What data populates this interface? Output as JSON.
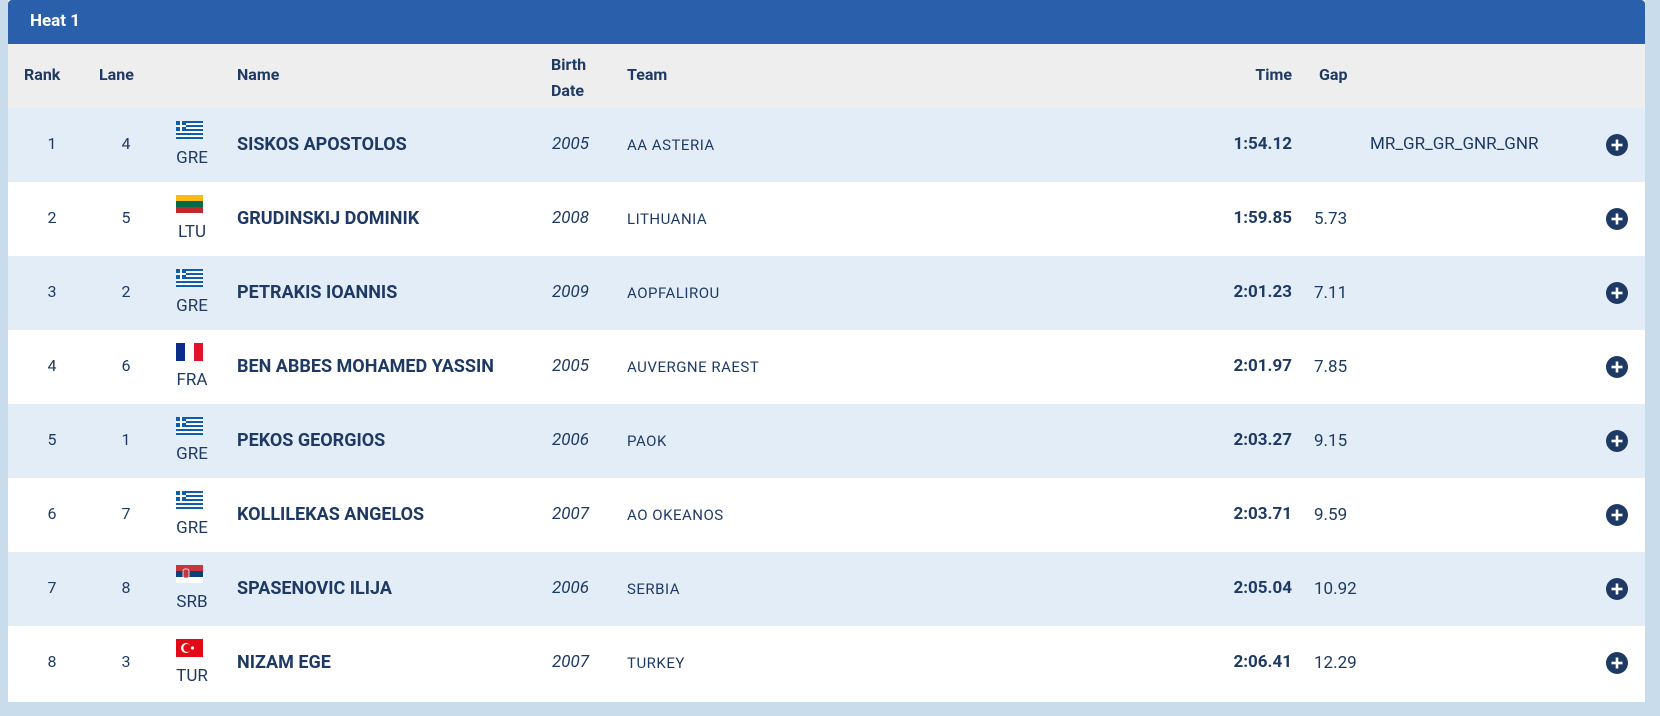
{
  "header": {
    "title": "Heat 1"
  },
  "table": {
    "columns": {
      "rank": "Rank",
      "lane": "Lane",
      "name": "Name",
      "birth": "Birth Date",
      "team": "Team",
      "time": "Time",
      "gap": "Gap"
    },
    "rows": [
      {
        "rank": 1,
        "lane": 4,
        "country": "GRE",
        "name": "SISKOS APOSTOLOS",
        "birth": 2005,
        "team": "AA ASTERIA",
        "time": "1:54.12",
        "gap": null,
        "records": "MR_GR_GR_GNR_GNR"
      },
      {
        "rank": 2,
        "lane": 5,
        "country": "LTU",
        "name": "GRUDINSKIJ DOMINIK",
        "birth": 2008,
        "team": "LITHUANIA",
        "time": "1:59.85",
        "gap": 5.73,
        "records": null
      },
      {
        "rank": 3,
        "lane": 2,
        "country": "GRE",
        "name": "PETRAKIS IOANNIS",
        "birth": 2009,
        "team": "AOPFALIROU",
        "time": "2:01.23",
        "gap": 7.11,
        "records": null
      },
      {
        "rank": 4,
        "lane": 6,
        "country": "FRA",
        "name": "BEN ABBES MOHAMED YASSIN",
        "birth": 2005,
        "team": "AUVERGNE RAEST",
        "time": "2:01.97",
        "gap": 7.85,
        "records": null
      },
      {
        "rank": 5,
        "lane": 1,
        "country": "GRE",
        "name": "PEKOS GEORGIOS",
        "birth": 2006,
        "team": "PAOK",
        "time": "2:03.27",
        "gap": 9.15,
        "records": null
      },
      {
        "rank": 6,
        "lane": 7,
        "country": "GRE",
        "name": "KOLLILEKAS ANGELOS",
        "birth": 2007,
        "team": "AO OKEANOS",
        "time": "2:03.71",
        "gap": 9.59,
        "records": null
      },
      {
        "rank": 7,
        "lane": 8,
        "country": "SRB",
        "name": "SPASENOVIC ILIJA",
        "birth": 2006,
        "team": "SERBIA",
        "time": "2:05.04",
        "gap": 10.92,
        "records": null
      },
      {
        "rank": 8,
        "lane": 3,
        "country": "TUR",
        "name": "NIZAM EGE",
        "birth": 2007,
        "team": "TURKEY",
        "time": "2:06.41",
        "gap": 12.29,
        "records": null
      }
    ]
  }
}
